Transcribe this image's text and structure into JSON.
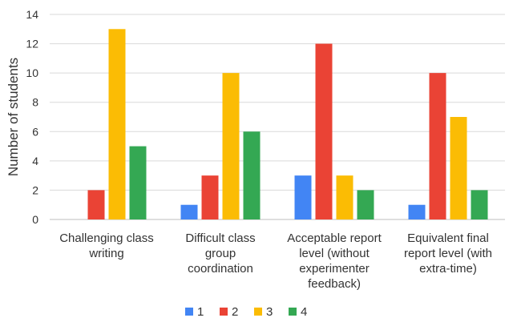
{
  "chart_data": {
    "type": "bar",
    "title": "",
    "xlabel": "",
    "ylabel": "Number of students",
    "ylim": [
      0,
      14
    ],
    "yticks": [
      0,
      2,
      4,
      6,
      8,
      10,
      12,
      14
    ],
    "grid": true,
    "legend_position": "bottom",
    "categories": [
      [
        "Challenging class",
        "writing"
      ],
      [
        "Difficult class",
        "group",
        "coordination"
      ],
      [
        "Acceptable report",
        "level (without",
        "experimenter",
        "feedback)"
      ],
      [
        "Equivalent final",
        "report level (with",
        "extra-time)"
      ]
    ],
    "series": [
      {
        "name": "1",
        "color": "#4285f4",
        "values": [
          0,
          1,
          3,
          1
        ]
      },
      {
        "name": "2",
        "color": "#ea4335",
        "values": [
          2,
          3,
          12,
          10
        ]
      },
      {
        "name": "3",
        "color": "#fbbc04",
        "values": [
          13,
          10,
          3,
          7
        ]
      },
      {
        "name": "4",
        "color": "#34a853",
        "values": [
          5,
          6,
          2,
          2
        ]
      }
    ]
  }
}
